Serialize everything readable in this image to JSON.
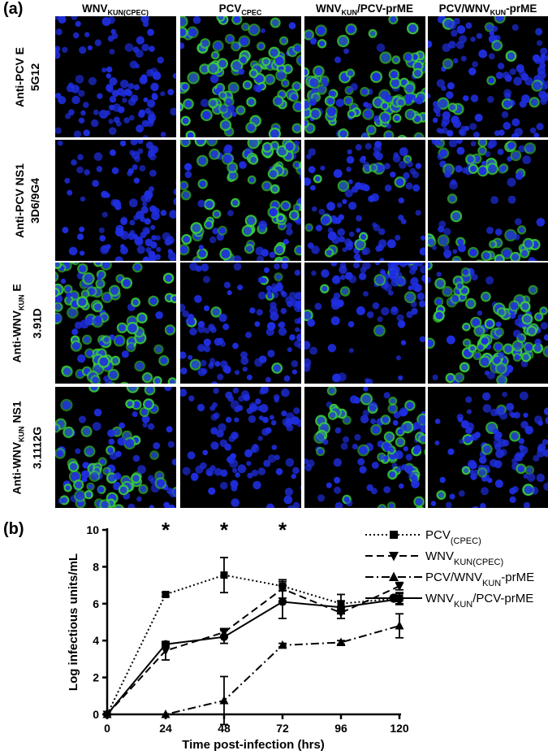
{
  "panel_a_label": "(a)",
  "panel_b_label": "(b)",
  "microscopy": {
    "columns": [
      {
        "main": "WNV",
        "sub": "KUN(CPEC)",
        "rest": ""
      },
      {
        "main": "PCV",
        "sub": "CPEC",
        "rest": ""
      },
      {
        "main": "WNV",
        "sub": "KUN",
        "rest": "/PCV-prME"
      },
      {
        "main": "PCV/WNV",
        "sub": "KUN",
        "rest": "-prME"
      }
    ],
    "rows": [
      {
        "line1_main": "Anti-PCV E",
        "line1_sub": "",
        "line1_rest": "",
        "line2": "5G12"
      },
      {
        "line1_main": "Anti-PCV NS1",
        "line1_sub": "",
        "line1_rest": "",
        "line2": "3D6/9G4"
      },
      {
        "line1_main": "Anti-WNV",
        "line1_sub": "KUN",
        "line1_rest": " E",
        "line2": "3.91D"
      },
      {
        "line1_main": "Anti-WNV",
        "line1_sub": "KUN",
        "line1_rest": " NS1",
        "line2": "3.1112G"
      }
    ],
    "green_intensity": [
      [
        0.0,
        0.8,
        0.85,
        0.1
      ],
      [
        0.0,
        0.75,
        0.1,
        0.45
      ],
      [
        0.75,
        0.05,
        0.05,
        0.6
      ],
      [
        0.45,
        0.0,
        0.4,
        0.1
      ]
    ],
    "stain_colors": {
      "nucleus": "#1f2ee0",
      "antibody": "#3cd23c",
      "background": "#000000"
    }
  },
  "chart_data": {
    "type": "line",
    "xlabel": "Time post-infection (hrs)",
    "ylabel": "Log infectious units/mL",
    "x_ticks": [
      0,
      24,
      48,
      72,
      96,
      120
    ],
    "y_ticks": [
      0,
      2,
      4,
      6,
      8,
      10
    ],
    "xlim": [
      0,
      120
    ],
    "ylim": [
      0,
      10
    ],
    "significance": [
      {
        "x": 24,
        "label": "*"
      },
      {
        "x": 48,
        "label": "*"
      },
      {
        "x": 72,
        "label": "*"
      }
    ],
    "series": [
      {
        "name_main": "PCV",
        "name_sub": "(CPEC)",
        "name_rest": "",
        "marker": "square",
        "dash": "dotted",
        "x": [
          0,
          24,
          48,
          72,
          96,
          120
        ],
        "y": [
          0,
          6.5,
          7.55,
          6.95,
          6.0,
          6.3
        ],
        "err": [
          0,
          0.1,
          0.95,
          0.25,
          0.5,
          0.3
        ]
      },
      {
        "name_main": "WNV",
        "name_sub": "KUN(CPEC)",
        "name_rest": "",
        "marker": "triangle-down",
        "dash": "dashed",
        "x": [
          0,
          24,
          48,
          72,
          96,
          120
        ],
        "y": [
          0,
          3.45,
          4.45,
          6.8,
          5.5,
          6.95
        ],
        "err": [
          0,
          0.5,
          0.2,
          0.5,
          0.3,
          0.2
        ]
      },
      {
        "name_main": "PCV/WNV",
        "name_sub": "KUN",
        "name_rest": "-prME",
        "marker": "triangle-up",
        "dash": "dashdot",
        "x": [
          0,
          24,
          48,
          72,
          96,
          120
        ],
        "y": [
          0,
          0.0,
          0.75,
          3.75,
          3.9,
          4.8
        ],
        "err": [
          0,
          0,
          1.3,
          0.1,
          0.1,
          0.65
        ]
      },
      {
        "name_main": "WNV",
        "name_sub": "KUN",
        "name_rest": "/PCV-prME",
        "marker": "circle",
        "dash": "solid",
        "x": [
          0,
          24,
          48,
          72,
          96,
          120
        ],
        "y": [
          0,
          3.8,
          4.2,
          6.1,
          5.8,
          6.25
        ],
        "err": [
          0,
          0.1,
          0.35,
          0.9,
          0.35,
          0.3
        ]
      }
    ]
  }
}
